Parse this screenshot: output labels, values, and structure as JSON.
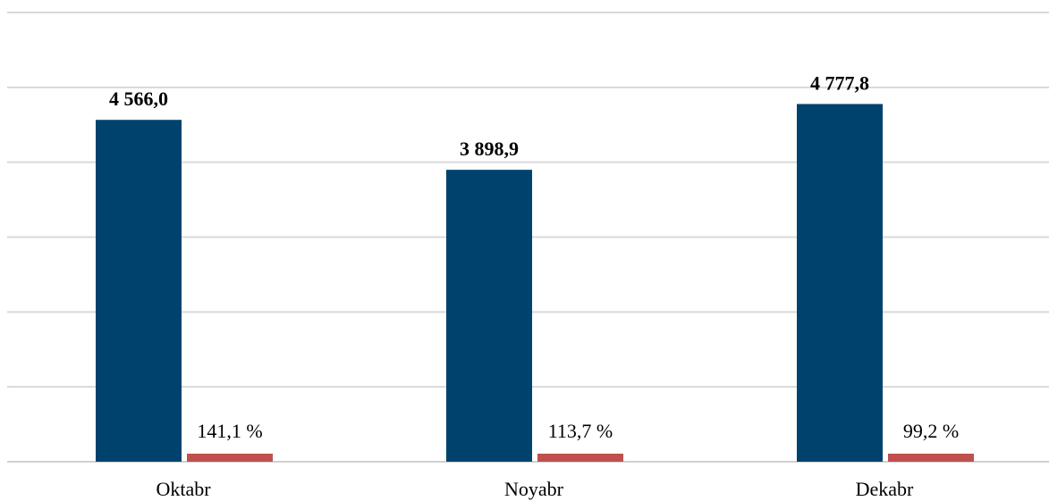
{
  "chart_data": {
    "type": "bar",
    "categories": [
      "Oktabr",
      "Noyabr",
      "Dekabr"
    ],
    "series": [
      {
        "values": [
          4566.0,
          3898.9,
          4777.8
        ],
        "labels": [
          "4 566,0",
          "3 898,9",
          "4 777,8"
        ],
        "color": "#00426e"
      },
      {
        "values": [
          141.1,
          113.7,
          99.2
        ],
        "labels": [
          "141,1 %",
          "113,7 %",
          "99,2 %"
        ],
        "color": "#c0504d"
      }
    ],
    "ylim": [
      0,
      6000
    ],
    "grid": true,
    "legend": "none"
  }
}
